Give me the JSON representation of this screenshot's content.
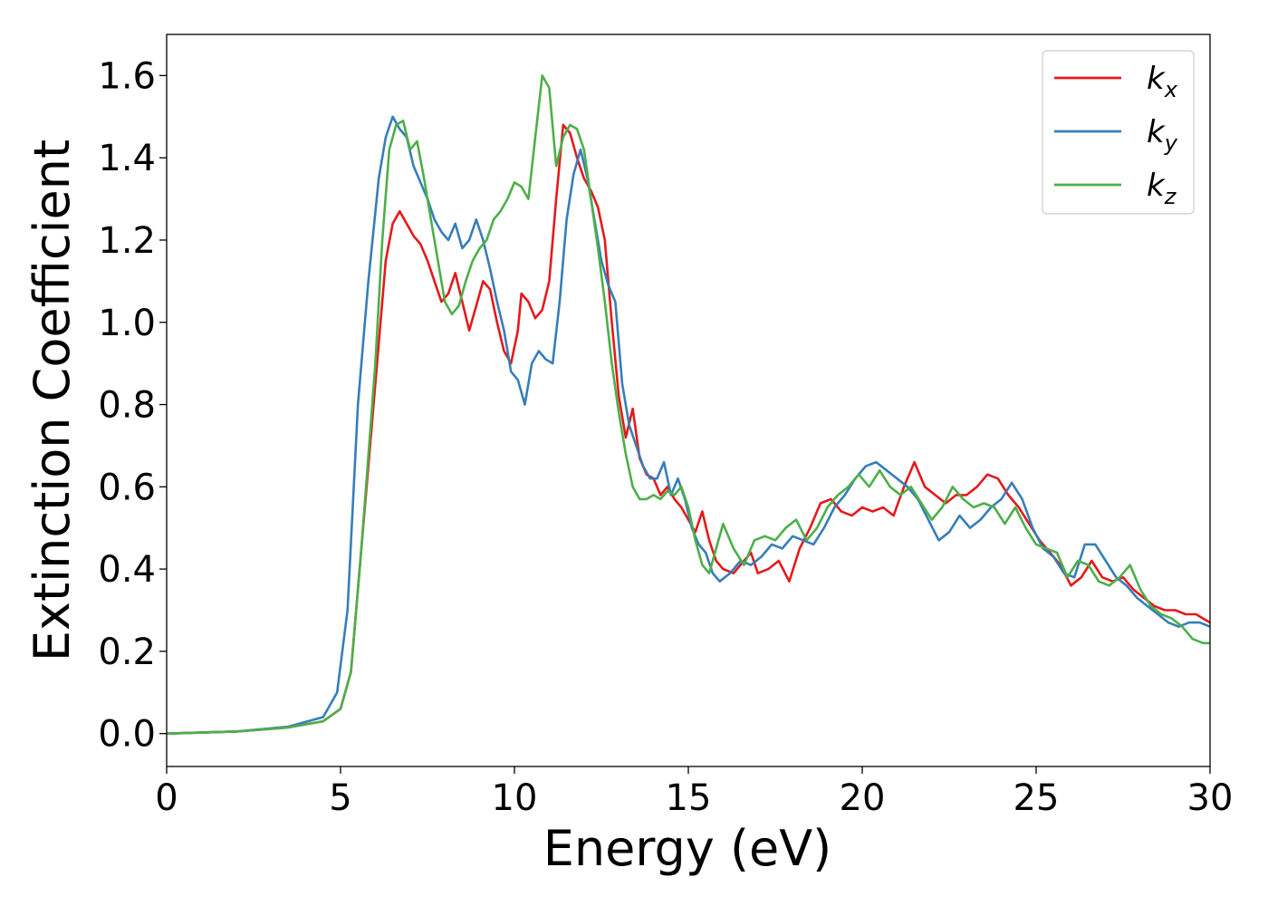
{
  "chart_data": {
    "type": "line",
    "xlabel": "Energy (eV)",
    "ylabel": "Extinction Coefficient",
    "xlim": [
      0,
      30
    ],
    "ylim": [
      -0.08,
      1.7
    ],
    "xticks": [
      0,
      5,
      10,
      15,
      20,
      25,
      30
    ],
    "xtick_labels": [
      "0",
      "5",
      "10",
      "15",
      "20",
      "25",
      "30"
    ],
    "yticks": [
      0.0,
      0.2,
      0.4,
      0.6,
      0.8,
      1.0,
      1.2,
      1.4,
      1.6
    ],
    "ytick_labels": [
      "0.0",
      "0.2",
      "0.4",
      "0.6",
      "0.8",
      "1.0",
      "1.2",
      "1.4",
      "1.6"
    ],
    "grid": false,
    "legend_position": "top-right",
    "series": [
      {
        "name": "k",
        "sub": "x",
        "color": "#e41a1c",
        "points": [
          [
            0,
            0
          ],
          [
            2,
            0.005
          ],
          [
            3.5,
            0.015
          ],
          [
            4.5,
            0.03
          ],
          [
            5.0,
            0.06
          ],
          [
            5.3,
            0.15
          ],
          [
            5.6,
            0.45
          ],
          [
            6.0,
            0.85
          ],
          [
            6.3,
            1.15
          ],
          [
            6.5,
            1.24
          ],
          [
            6.7,
            1.27
          ],
          [
            6.9,
            1.24
          ],
          [
            7.1,
            1.21
          ],
          [
            7.3,
            1.19
          ],
          [
            7.5,
            1.15
          ],
          [
            7.7,
            1.1
          ],
          [
            7.9,
            1.05
          ],
          [
            8.1,
            1.07
          ],
          [
            8.3,
            1.12
          ],
          [
            8.5,
            1.05
          ],
          [
            8.7,
            0.98
          ],
          [
            8.9,
            1.04
          ],
          [
            9.1,
            1.1
          ],
          [
            9.3,
            1.08
          ],
          [
            9.5,
            1.0
          ],
          [
            9.7,
            0.93
          ],
          [
            9.9,
            0.9
          ],
          [
            10.1,
            0.98
          ],
          [
            10.2,
            1.07
          ],
          [
            10.4,
            1.05
          ],
          [
            10.6,
            1.01
          ],
          [
            10.8,
            1.03
          ],
          [
            11.0,
            1.1
          ],
          [
            11.2,
            1.3
          ],
          [
            11.4,
            1.48
          ],
          [
            11.6,
            1.46
          ],
          [
            11.8,
            1.4
          ],
          [
            12.0,
            1.35
          ],
          [
            12.2,
            1.32
          ],
          [
            12.4,
            1.28
          ],
          [
            12.6,
            1.2
          ],
          [
            12.8,
            1.0
          ],
          [
            13.0,
            0.82
          ],
          [
            13.2,
            0.72
          ],
          [
            13.4,
            0.79
          ],
          [
            13.6,
            0.67
          ],
          [
            13.8,
            0.63
          ],
          [
            14.0,
            0.62
          ],
          [
            14.2,
            0.58
          ],
          [
            14.4,
            0.6
          ],
          [
            14.6,
            0.57
          ],
          [
            14.8,
            0.55
          ],
          [
            15.0,
            0.52
          ],
          [
            15.2,
            0.49
          ],
          [
            15.4,
            0.54
          ],
          [
            15.6,
            0.47
          ],
          [
            15.8,
            0.42
          ],
          [
            16.0,
            0.4
          ],
          [
            16.3,
            0.39
          ],
          [
            16.6,
            0.42
          ],
          [
            16.8,
            0.44
          ],
          [
            17.0,
            0.39
          ],
          [
            17.3,
            0.4
          ],
          [
            17.6,
            0.42
          ],
          [
            17.9,
            0.37
          ],
          [
            18.2,
            0.45
          ],
          [
            18.5,
            0.5
          ],
          [
            18.8,
            0.56
          ],
          [
            19.1,
            0.57
          ],
          [
            19.4,
            0.54
          ],
          [
            19.7,
            0.53
          ],
          [
            20.0,
            0.55
          ],
          [
            20.3,
            0.54
          ],
          [
            20.6,
            0.55
          ],
          [
            20.9,
            0.53
          ],
          [
            21.2,
            0.6
          ],
          [
            21.5,
            0.66
          ],
          [
            21.8,
            0.6
          ],
          [
            22.1,
            0.58
          ],
          [
            22.4,
            0.56
          ],
          [
            22.7,
            0.58
          ],
          [
            23.0,
            0.58
          ],
          [
            23.3,
            0.6
          ],
          [
            23.6,
            0.63
          ],
          [
            23.9,
            0.62
          ],
          [
            24.2,
            0.58
          ],
          [
            24.5,
            0.55
          ],
          [
            24.8,
            0.51
          ],
          [
            25.1,
            0.47
          ],
          [
            25.4,
            0.44
          ],
          [
            25.7,
            0.41
          ],
          [
            26.0,
            0.36
          ],
          [
            26.3,
            0.38
          ],
          [
            26.6,
            0.42
          ],
          [
            26.9,
            0.38
          ],
          [
            27.2,
            0.37
          ],
          [
            27.5,
            0.38
          ],
          [
            27.8,
            0.35
          ],
          [
            28.1,
            0.33
          ],
          [
            28.4,
            0.31
          ],
          [
            28.7,
            0.3
          ],
          [
            29.0,
            0.3
          ],
          [
            29.3,
            0.29
          ],
          [
            29.6,
            0.29
          ],
          [
            29.8,
            0.28
          ],
          [
            30.0,
            0.27
          ]
        ]
      },
      {
        "name": "k",
        "sub": "y",
        "color": "#377eb8",
        "points": [
          [
            0,
            0
          ],
          [
            2,
            0.005
          ],
          [
            3.5,
            0.017
          ],
          [
            4.5,
            0.04
          ],
          [
            4.9,
            0.1
          ],
          [
            5.2,
            0.3
          ],
          [
            5.5,
            0.8
          ],
          [
            5.8,
            1.1
          ],
          [
            6.1,
            1.35
          ],
          [
            6.3,
            1.45
          ],
          [
            6.5,
            1.5
          ],
          [
            6.7,
            1.47
          ],
          [
            6.9,
            1.45
          ],
          [
            7.1,
            1.38
          ],
          [
            7.3,
            1.34
          ],
          [
            7.5,
            1.3
          ],
          [
            7.7,
            1.25
          ],
          [
            7.9,
            1.22
          ],
          [
            8.1,
            1.2
          ],
          [
            8.3,
            1.24
          ],
          [
            8.5,
            1.18
          ],
          [
            8.7,
            1.2
          ],
          [
            8.9,
            1.25
          ],
          [
            9.1,
            1.2
          ],
          [
            9.3,
            1.13
          ],
          [
            9.5,
            1.05
          ],
          [
            9.7,
            0.98
          ],
          [
            9.9,
            0.88
          ],
          [
            10.1,
            0.86
          ],
          [
            10.3,
            0.8
          ],
          [
            10.5,
            0.9
          ],
          [
            10.7,
            0.93
          ],
          [
            10.9,
            0.91
          ],
          [
            11.1,
            0.9
          ],
          [
            11.3,
            1.05
          ],
          [
            11.5,
            1.25
          ],
          [
            11.7,
            1.36
          ],
          [
            11.9,
            1.42
          ],
          [
            12.1,
            1.35
          ],
          [
            12.3,
            1.25
          ],
          [
            12.5,
            1.15
          ],
          [
            12.7,
            1.09
          ],
          [
            12.9,
            1.05
          ],
          [
            13.1,
            0.85
          ],
          [
            13.3,
            0.75
          ],
          [
            13.5,
            0.7
          ],
          [
            13.7,
            0.65
          ],
          [
            13.9,
            0.62
          ],
          [
            14.1,
            0.62
          ],
          [
            14.3,
            0.66
          ],
          [
            14.5,
            0.58
          ],
          [
            14.7,
            0.62
          ],
          [
            14.9,
            0.57
          ],
          [
            15.1,
            0.5
          ],
          [
            15.3,
            0.46
          ],
          [
            15.5,
            0.44
          ],
          [
            15.7,
            0.39
          ],
          [
            15.9,
            0.37
          ],
          [
            16.2,
            0.39
          ],
          [
            16.5,
            0.42
          ],
          [
            16.8,
            0.41
          ],
          [
            17.1,
            0.43
          ],
          [
            17.4,
            0.46
          ],
          [
            17.7,
            0.45
          ],
          [
            18.0,
            0.48
          ],
          [
            18.3,
            0.47
          ],
          [
            18.6,
            0.46
          ],
          [
            18.9,
            0.5
          ],
          [
            19.2,
            0.55
          ],
          [
            19.5,
            0.58
          ],
          [
            19.8,
            0.62
          ],
          [
            20.1,
            0.65
          ],
          [
            20.4,
            0.66
          ],
          [
            20.7,
            0.64
          ],
          [
            21.0,
            0.62
          ],
          [
            21.3,
            0.6
          ],
          [
            21.6,
            0.57
          ],
          [
            21.9,
            0.52
          ],
          [
            22.2,
            0.47
          ],
          [
            22.5,
            0.49
          ],
          [
            22.8,
            0.53
          ],
          [
            23.1,
            0.5
          ],
          [
            23.4,
            0.52
          ],
          [
            23.7,
            0.55
          ],
          [
            24.0,
            0.57
          ],
          [
            24.3,
            0.61
          ],
          [
            24.6,
            0.57
          ],
          [
            24.9,
            0.5
          ],
          [
            25.2,
            0.45
          ],
          [
            25.5,
            0.43
          ],
          [
            25.8,
            0.39
          ],
          [
            26.1,
            0.38
          ],
          [
            26.4,
            0.46
          ],
          [
            26.7,
            0.46
          ],
          [
            27.0,
            0.42
          ],
          [
            27.3,
            0.38
          ],
          [
            27.6,
            0.36
          ],
          [
            27.9,
            0.33
          ],
          [
            28.2,
            0.31
          ],
          [
            28.5,
            0.29
          ],
          [
            28.8,
            0.27
          ],
          [
            29.1,
            0.26
          ],
          [
            29.4,
            0.27
          ],
          [
            29.7,
            0.27
          ],
          [
            30.0,
            0.26
          ]
        ]
      },
      {
        "name": "k",
        "sub": "z",
        "color": "#4daf4a",
        "points": [
          [
            0,
            0
          ],
          [
            2,
            0.005
          ],
          [
            3.5,
            0.015
          ],
          [
            4.5,
            0.03
          ],
          [
            5.0,
            0.06
          ],
          [
            5.3,
            0.15
          ],
          [
            5.6,
            0.45
          ],
          [
            6.0,
            0.9
          ],
          [
            6.2,
            1.2
          ],
          [
            6.4,
            1.42
          ],
          [
            6.6,
            1.48
          ],
          [
            6.8,
            1.49
          ],
          [
            7.0,
            1.42
          ],
          [
            7.2,
            1.44
          ],
          [
            7.4,
            1.35
          ],
          [
            7.6,
            1.25
          ],
          [
            7.8,
            1.15
          ],
          [
            8.0,
            1.05
          ],
          [
            8.2,
            1.02
          ],
          [
            8.4,
            1.04
          ],
          [
            8.6,
            1.1
          ],
          [
            8.8,
            1.15
          ],
          [
            9.0,
            1.18
          ],
          [
            9.2,
            1.2
          ],
          [
            9.4,
            1.25
          ],
          [
            9.6,
            1.27
          ],
          [
            9.8,
            1.3
          ],
          [
            10.0,
            1.34
          ],
          [
            10.2,
            1.33
          ],
          [
            10.4,
            1.3
          ],
          [
            10.6,
            1.45
          ],
          [
            10.8,
            1.6
          ],
          [
            11.0,
            1.57
          ],
          [
            11.2,
            1.38
          ],
          [
            11.4,
            1.45
          ],
          [
            11.6,
            1.48
          ],
          [
            11.8,
            1.47
          ],
          [
            12.0,
            1.42
          ],
          [
            12.2,
            1.3
          ],
          [
            12.4,
            1.18
          ],
          [
            12.6,
            1.05
          ],
          [
            12.8,
            0.9
          ],
          [
            13.0,
            0.78
          ],
          [
            13.2,
            0.68
          ],
          [
            13.4,
            0.6
          ],
          [
            13.6,
            0.57
          ],
          [
            13.8,
            0.57
          ],
          [
            14.0,
            0.58
          ],
          [
            14.2,
            0.57
          ],
          [
            14.4,
            0.59
          ],
          [
            14.6,
            0.58
          ],
          [
            14.8,
            0.6
          ],
          [
            15.0,
            0.55
          ],
          [
            15.2,
            0.47
          ],
          [
            15.4,
            0.41
          ],
          [
            15.6,
            0.39
          ],
          [
            15.8,
            0.45
          ],
          [
            16.0,
            0.51
          ],
          [
            16.3,
            0.45
          ],
          [
            16.6,
            0.41
          ],
          [
            16.9,
            0.47
          ],
          [
            17.2,
            0.48
          ],
          [
            17.5,
            0.47
          ],
          [
            17.8,
            0.5
          ],
          [
            18.1,
            0.52
          ],
          [
            18.4,
            0.47
          ],
          [
            18.7,
            0.5
          ],
          [
            19.0,
            0.55
          ],
          [
            19.3,
            0.58
          ],
          [
            19.6,
            0.6
          ],
          [
            19.9,
            0.63
          ],
          [
            20.2,
            0.6
          ],
          [
            20.5,
            0.64
          ],
          [
            20.8,
            0.6
          ],
          [
            21.1,
            0.58
          ],
          [
            21.4,
            0.6
          ],
          [
            21.7,
            0.56
          ],
          [
            22.0,
            0.52
          ],
          [
            22.3,
            0.55
          ],
          [
            22.6,
            0.6
          ],
          [
            22.9,
            0.57
          ],
          [
            23.2,
            0.55
          ],
          [
            23.5,
            0.56
          ],
          [
            23.8,
            0.55
          ],
          [
            24.1,
            0.51
          ],
          [
            24.4,
            0.55
          ],
          [
            24.7,
            0.5
          ],
          [
            25.0,
            0.46
          ],
          [
            25.3,
            0.45
          ],
          [
            25.6,
            0.44
          ],
          [
            25.9,
            0.38
          ],
          [
            26.2,
            0.42
          ],
          [
            26.5,
            0.41
          ],
          [
            26.8,
            0.37
          ],
          [
            27.1,
            0.36
          ],
          [
            27.4,
            0.38
          ],
          [
            27.7,
            0.41
          ],
          [
            28.0,
            0.35
          ],
          [
            28.3,
            0.31
          ],
          [
            28.6,
            0.29
          ],
          [
            28.9,
            0.28
          ],
          [
            29.2,
            0.26
          ],
          [
            29.5,
            0.23
          ],
          [
            29.8,
            0.22
          ],
          [
            30.0,
            0.22
          ]
        ]
      }
    ]
  }
}
